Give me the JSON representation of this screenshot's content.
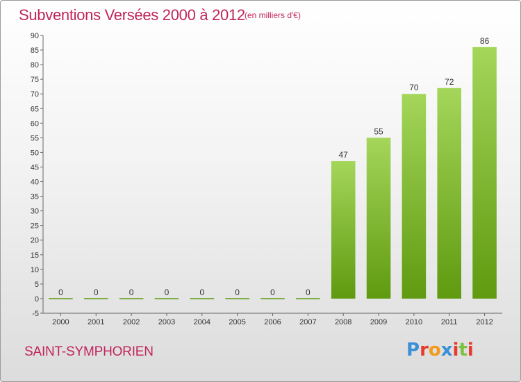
{
  "header": {
    "title": "Subventions Versées 2000 à 2012",
    "subtitle": "(en milliers d'€)"
  },
  "footer": {
    "commune": "SAINT-SYMPHORIEN",
    "brand": "Proxiti",
    "brand_colors": [
      "#3a8fd8",
      "#e8392a",
      "#f29a1c",
      "#3a8fd8",
      "#e8392a",
      "#7cc142",
      "#e8392a"
    ]
  },
  "colors": {
    "title": "#c0245c",
    "bar_top": "#a4d65a",
    "bar_bottom": "#5f9a10",
    "axis": "#666666",
    "grid": "#d0d0d0"
  },
  "chart_data": {
    "type": "bar",
    "title": "Subventions Versées 2000 à 2012",
    "subtitle": "(en milliers d'€)",
    "xlabel": "",
    "ylabel": "",
    "ylim": [
      -5,
      90
    ],
    "ytick_step": 5,
    "grid": false,
    "categories": [
      "2000",
      "2001",
      "2002",
      "2003",
      "2004",
      "2005",
      "2006",
      "2007",
      "2008",
      "2009",
      "2010",
      "2011",
      "2012"
    ],
    "values": [
      0,
      0,
      0,
      0,
      0,
      0,
      0,
      0,
      47,
      55,
      70,
      72,
      86
    ]
  }
}
